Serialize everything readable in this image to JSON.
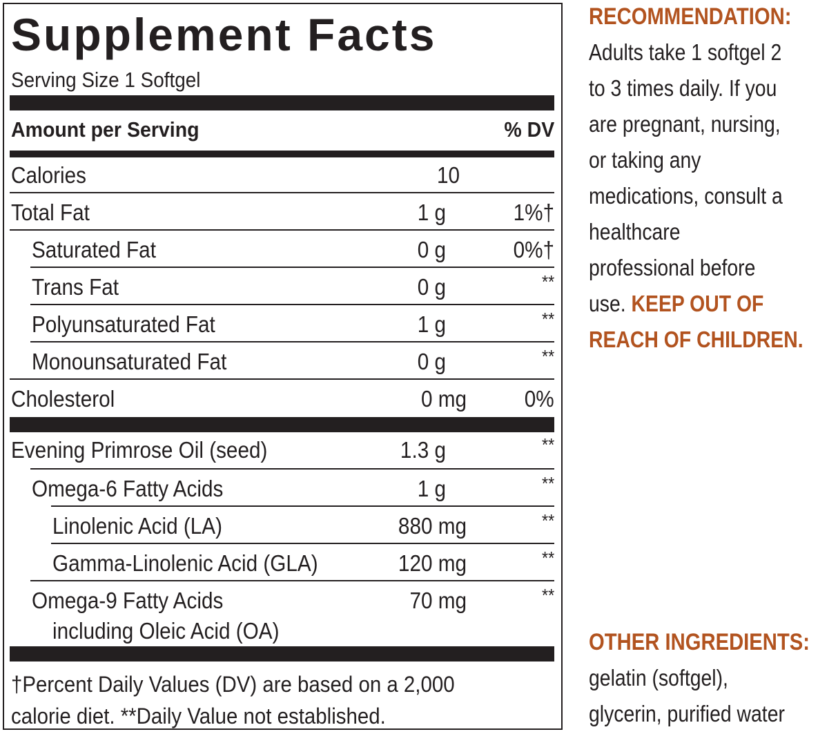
{
  "facts": {
    "title": "Supplement Facts",
    "serving_size": "Serving Size 1 Softgel",
    "header_left": "Amount per Serving",
    "header_right": "% DV",
    "rows": [
      {
        "name": "Calories",
        "amount": "10",
        "dv": ""
      },
      {
        "name": "Total Fat",
        "amount": "1 g",
        "dv": "1%†"
      },
      {
        "name": "Saturated Fat",
        "amount": "0 g",
        "dv": "0%†"
      },
      {
        "name": "Trans Fat",
        "amount": "0 g",
        "dv": "**"
      },
      {
        "name": "Polyunsaturated Fat",
        "amount": "1 g",
        "dv": "**"
      },
      {
        "name": "Monounsaturated Fat",
        "amount": "0 g",
        "dv": "**"
      },
      {
        "name": "Cholesterol",
        "amount": "0 mg",
        "dv": "0%"
      },
      {
        "name": "Evening Primrose Oil (seed)",
        "amount": "1.3 g",
        "dv": "**"
      },
      {
        "name": "Omega-6 Fatty Acids",
        "amount": "1 g",
        "dv": "**"
      },
      {
        "name": "Linolenic Acid (LA)",
        "amount": "880 mg",
        "dv": "**"
      },
      {
        "name": "Gamma-Linolenic Acid (GLA)",
        "amount": "120 mg",
        "dv": "**"
      },
      {
        "name": "Omega-9 Fatty Acids",
        "name_line2": "including Oleic Acid (OA)",
        "amount": "70 mg",
        "dv": "**"
      }
    ],
    "footnote_line1": "†Percent Daily Values (DV) are based on a 2,000",
    "footnote_line2": "calorie diet. **Daily Value not established."
  },
  "recommendation": {
    "heading": "RECOMMENDATION:",
    "lines": [
      "Adults take 1 softgel 2",
      "to 3 times daily. If you",
      "are pregnant, nursing,",
      "or taking any",
      "medications, consult a",
      "healthcare",
      "professional before"
    ],
    "last_line_prefix": "use. ",
    "warning_part1": "KEEP OUT OF",
    "warning_part2": "REACH OF CHILDREN."
  },
  "ingredients": {
    "heading": "OTHER INGREDIENTS:",
    "lines": [
      "gelatin (softgel),",
      "glycerin, purified water"
    ]
  },
  "colors": {
    "accent": "#b2531f",
    "text": "#231f20"
  }
}
